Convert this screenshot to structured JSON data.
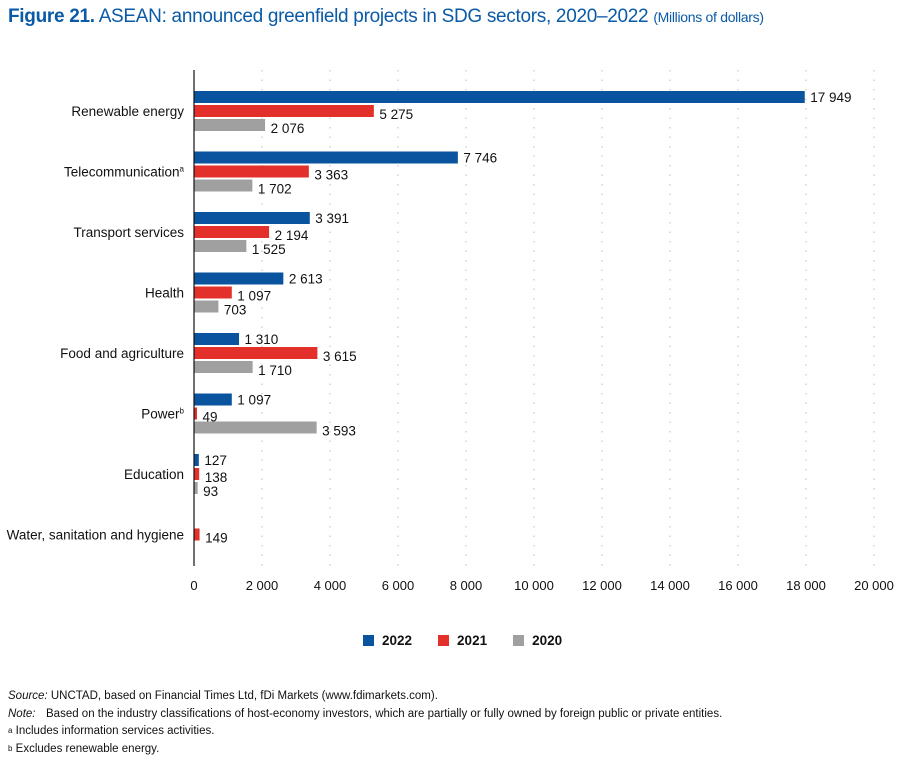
{
  "title": {
    "figure_label": "Figure 21.",
    "text": "ASEAN: announced greenfield projects in SDG sectors, 2020–2022",
    "unit": "(Millions of dollars)"
  },
  "colors": {
    "title": "#0a5aa6",
    "series_2022": "#0a539e",
    "series_2021": "#e3302a",
    "series_2020": "#a0a0a0"
  },
  "chart_data": {
    "type": "bar",
    "orientation": "horizontal",
    "title": "ASEAN: announced greenfield projects in SDG sectors, 2020–2022",
    "unit": "Millions of dollars",
    "categories": [
      "Renewable energy",
      "Telecommunication",
      "Transport services",
      "Health",
      "Food and agriculture",
      "Power",
      "Education",
      "Water, sanitation and hygiene"
    ],
    "category_superscripts": [
      "",
      "a",
      "",
      "",
      "",
      "b",
      "",
      ""
    ],
    "series": [
      {
        "name": "2022",
        "color": "#0a539e",
        "values": [
          17949,
          7746,
          3391,
          2613,
          1310,
          1097,
          127,
          null
        ]
      },
      {
        "name": "2021",
        "color": "#e3302a",
        "values": [
          5275,
          3363,
          2194,
          1097,
          3615,
          49,
          138,
          149
        ]
      },
      {
        "name": "2020",
        "color": "#a0a0a0",
        "values": [
          2076,
          1702,
          1525,
          703,
          1710,
          3593,
          93,
          null
        ]
      }
    ],
    "value_labels": [
      [
        "17 949",
        "5 275",
        "2 076"
      ],
      [
        "7 746",
        "3 363",
        "1 702"
      ],
      [
        "3 391",
        "2 194",
        "1 525"
      ],
      [
        "2 613",
        "1 097",
        "703"
      ],
      [
        "1 310",
        "3 615",
        "1 710"
      ],
      [
        "1 097",
        "49",
        "3 593"
      ],
      [
        "127",
        "138",
        "93"
      ],
      [
        null,
        "149",
        null
      ]
    ],
    "xlim": [
      0,
      20000
    ],
    "xticks": [
      0,
      2000,
      4000,
      6000,
      8000,
      10000,
      12000,
      14000,
      16000,
      18000,
      20000
    ],
    "xtick_labels": [
      "0",
      "2 000",
      "4 000",
      "6 000",
      "8 000",
      "10 000",
      "12 000",
      "14 000",
      "16 000",
      "18 000",
      "20 000"
    ],
    "xlabel": "",
    "ylabel": "",
    "grid": "vertical dotted",
    "legend": {
      "position": "bottom-center",
      "entries": [
        "2022",
        "2021",
        "2020"
      ]
    }
  },
  "notes": {
    "source_label": "Source:",
    "source_text": "UNCTAD, based on Financial Times Ltd, fDi Markets (www.fdimarkets.com).",
    "note_label": "Note:",
    "note_text": "Based on the industry classifications of host-economy investors, which are partially or fully owned by foreign public or private entities.",
    "footnote_a_mark": "a",
    "footnote_a": "Includes information services activities.",
    "footnote_b_mark": "b",
    "footnote_b": "Excludes renewable energy."
  }
}
